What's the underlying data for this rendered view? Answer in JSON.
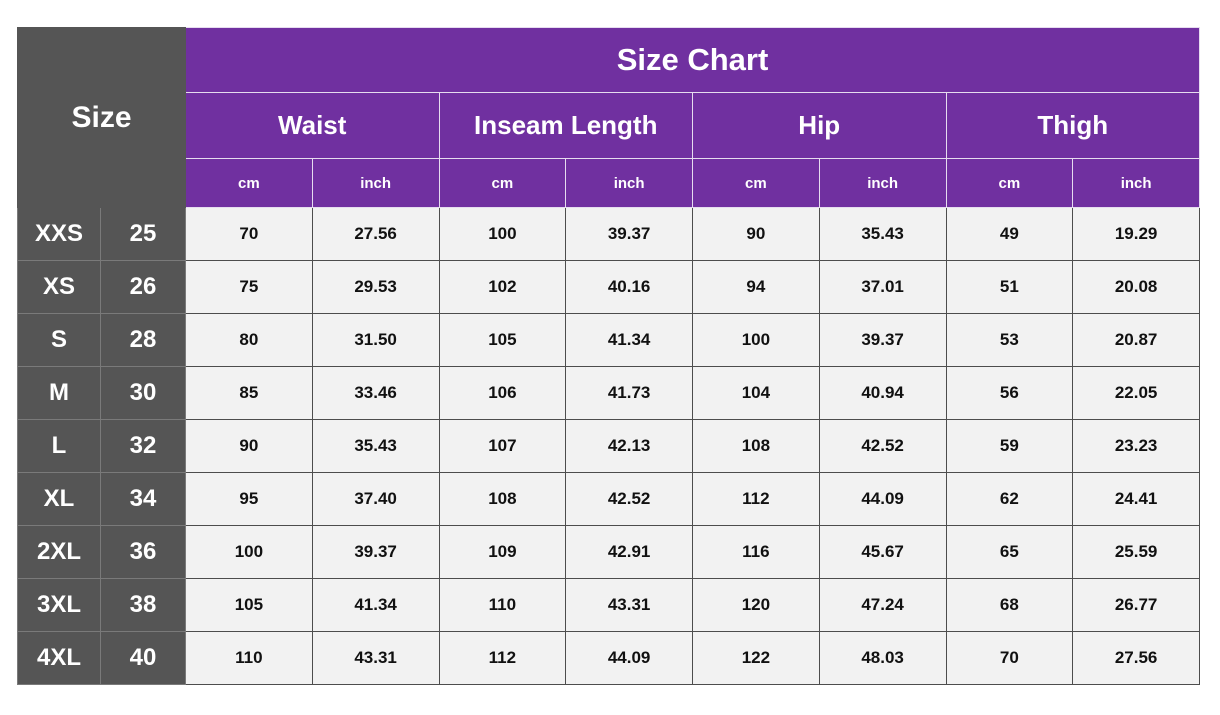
{
  "header": {
    "size_label": "Size",
    "title": "Size Chart",
    "groups": [
      {
        "name": "Waist",
        "units": [
          "cm",
          "inch"
        ]
      },
      {
        "name": "Inseam Length",
        "units": [
          "cm",
          "inch"
        ]
      },
      {
        "name": "Hip",
        "units": [
          "cm",
          "inch"
        ]
      },
      {
        "name": "Thigh",
        "units": [
          "cm",
          "inch"
        ]
      }
    ]
  },
  "table": {
    "rows": [
      [
        "XXS",
        "25",
        "70",
        "27.56",
        "100",
        "39.37",
        "90",
        "35.43",
        "49",
        "19.29"
      ],
      [
        "XS",
        "26",
        "75",
        "29.53",
        "102",
        "40.16",
        "94",
        "37.01",
        "51",
        "20.08"
      ],
      [
        "S",
        "28",
        "80",
        "31.50",
        "105",
        "41.34",
        "100",
        "39.37",
        "53",
        "20.87"
      ],
      [
        "M",
        "30",
        "85",
        "33.46",
        "106",
        "41.73",
        "104",
        "40.94",
        "56",
        "22.05"
      ],
      [
        "L",
        "32",
        "90",
        "35.43",
        "107",
        "42.13",
        "108",
        "42.52",
        "59",
        "23.23"
      ],
      [
        "XL",
        "34",
        "95",
        "37.40",
        "108",
        "42.52",
        "112",
        "44.09",
        "62",
        "24.41"
      ],
      [
        "2XL",
        "36",
        "100",
        "39.37",
        "109",
        "42.91",
        "116",
        "45.67",
        "65",
        "25.59"
      ],
      [
        "3XL",
        "38",
        "105",
        "41.34",
        "110",
        "43.31",
        "120",
        "47.24",
        "68",
        "26.77"
      ],
      [
        "4XL",
        "40",
        "110",
        "43.31",
        "112",
        "44.09",
        "122",
        "48.03",
        "70",
        "27.56"
      ]
    ]
  }
}
